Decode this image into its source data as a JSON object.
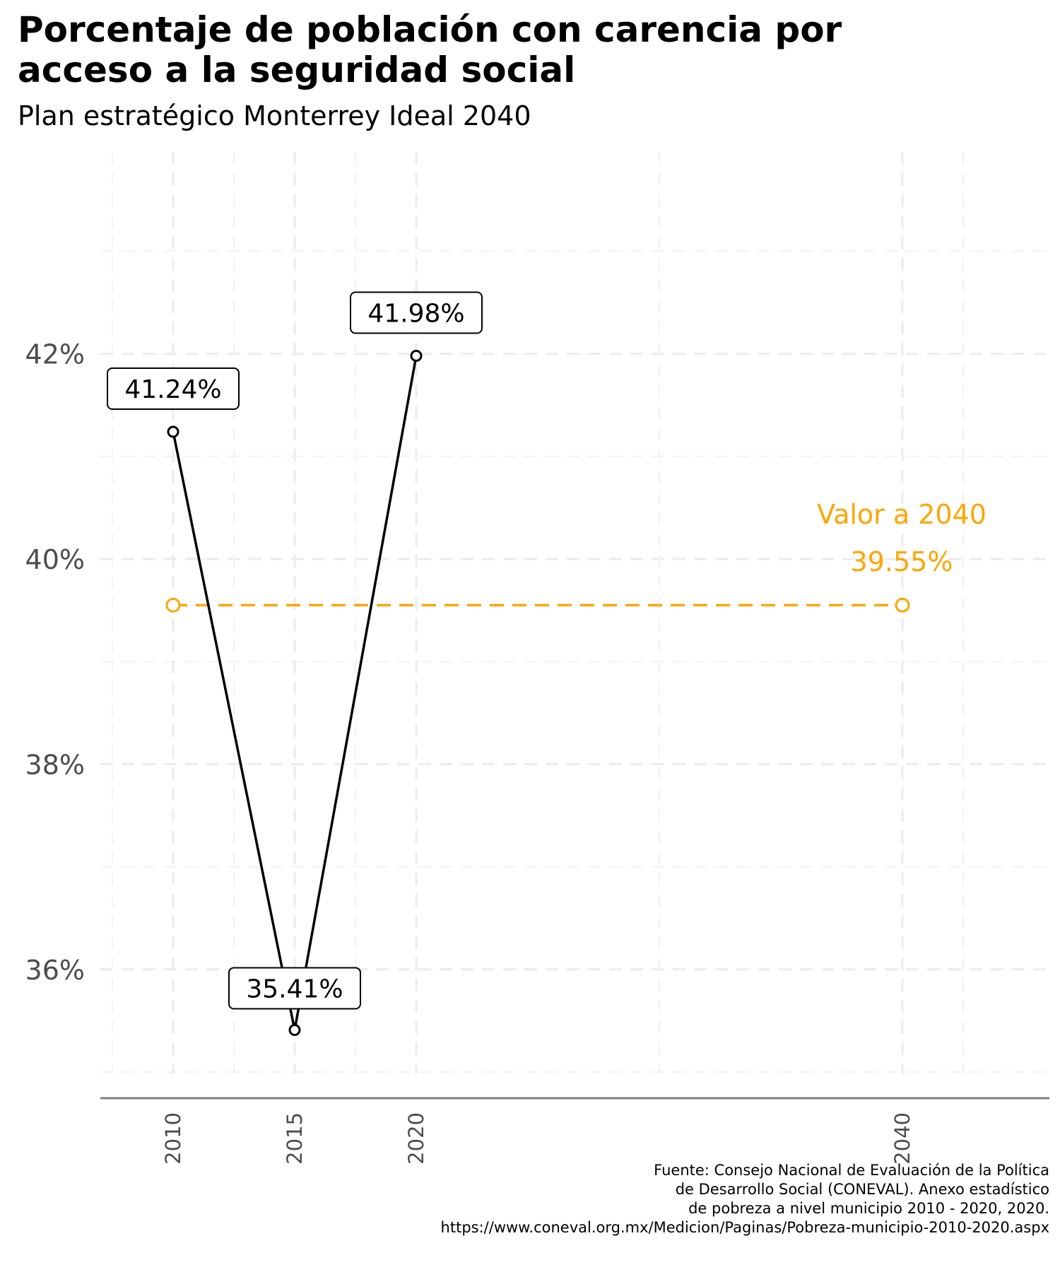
{
  "chart_data": {
    "type": "line",
    "title": [
      "Porcentaje de población con carencia por",
      "acceso a la seguridad social"
    ],
    "subtitle": "Plan estratégico Monterrey Ideal 2040",
    "xlabel": "",
    "ylabel": "",
    "x_ticks": [
      "2010",
      "2015",
      "2020",
      "2040"
    ],
    "y_ticks": [
      "36%",
      "38%",
      "40%",
      "42%"
    ],
    "ylim": [
      34.8,
      43.8
    ],
    "xlim": [
      2007.5,
      2045
    ],
    "grid": true,
    "series": [
      {
        "style": "solid",
        "color": "#000000",
        "points": [
          {
            "x": 2010,
            "y": 41.24,
            "label": "41.24%"
          },
          {
            "x": 2015,
            "y": 35.41,
            "label": "35.41%"
          },
          {
            "x": 2020,
            "y": 41.98,
            "label": "41.98%"
          }
        ]
      },
      {
        "style": "dashed",
        "color": "#FFA500",
        "points": [
          {
            "x": 2010,
            "y": 39.55
          },
          {
            "x": 2040,
            "y": 39.55
          }
        ]
      }
    ],
    "annotation": {
      "line1": "Valor a 2040",
      "line2": "39.55%",
      "color": "#FFA500"
    },
    "caption": [
      "Fuente: Consejo Nacional de Evaluación de la Política",
      "de Desarrollo Social (CONEVAL). Anexo estadístico",
      "de pobreza a nivel municipio 2010 - 2020, 2020.",
      "https://www.coneval.org.mx/Medicion/Paginas/Pobreza-municipio-2010-2020.aspx"
    ]
  }
}
